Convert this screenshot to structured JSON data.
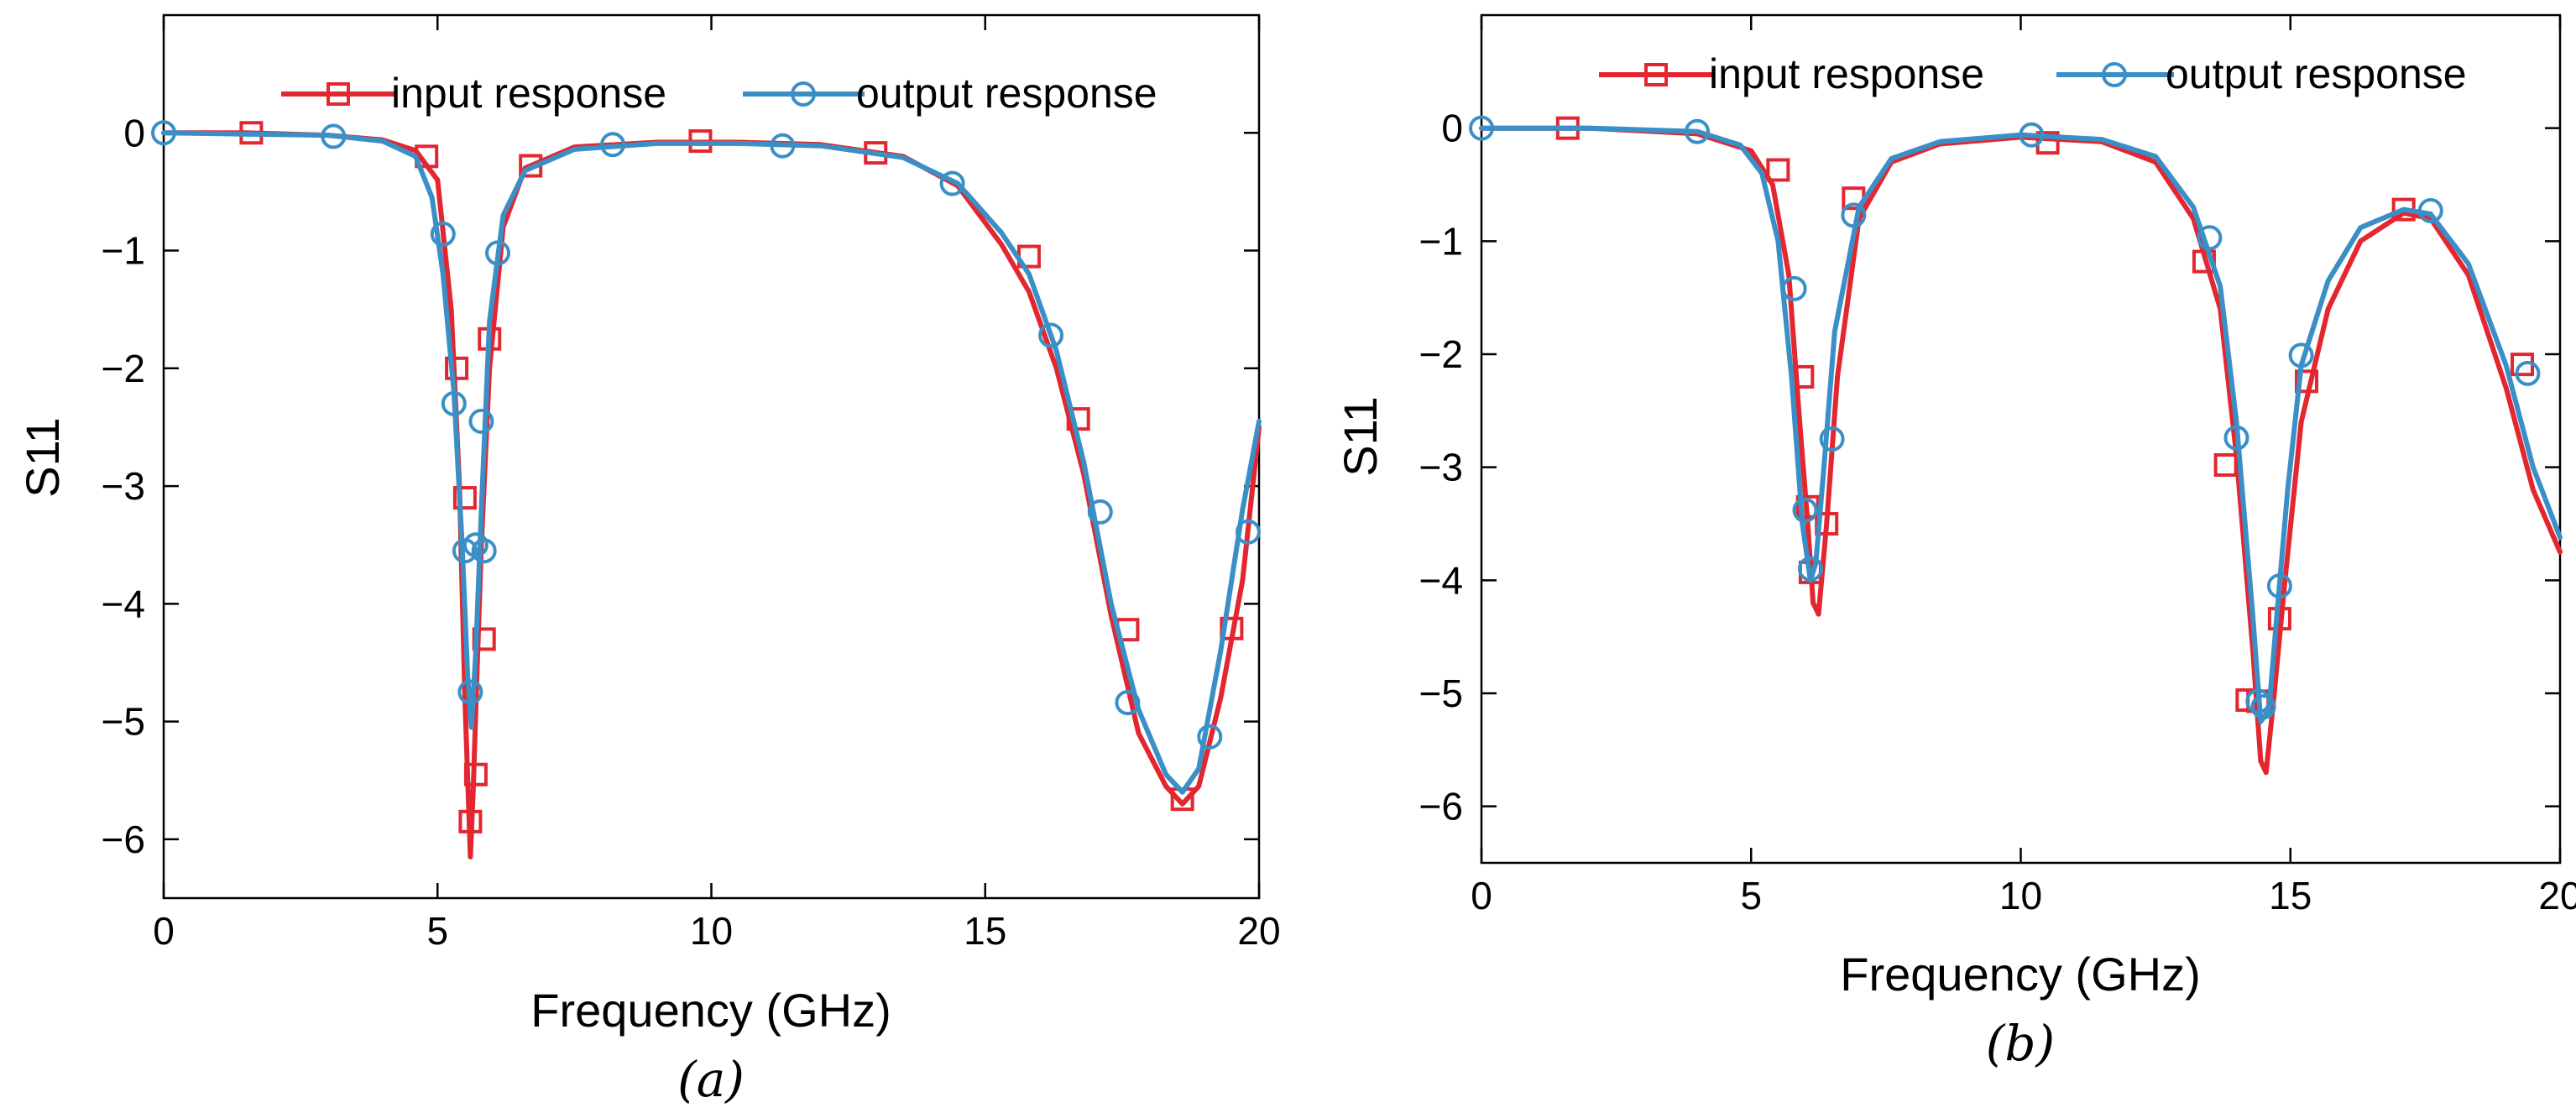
{
  "colors": {
    "input": "#e3262f",
    "output": "#3a8fc7"
  },
  "chart_data": [
    {
      "type": "line",
      "panel": "a",
      "caption": "(a)",
      "xlabel": "Frequency (GHz)",
      "ylabel": "S11",
      "xlim": [
        0,
        20
      ],
      "ylim": [
        -6.5,
        1.0
      ],
      "xticks": [
        0,
        5,
        10,
        15,
        20
      ],
      "xtick_labels": [
        "0",
        "5",
        "10",
        "15",
        "20"
      ],
      "yticks": [
        0,
        -1,
        -2,
        -3,
        -4,
        -5,
        -6
      ],
      "ytick_labels": [
        "0",
        "−1",
        "−2",
        "−3",
        "−4",
        "−5",
        "−6"
      ],
      "legend": [
        "input response",
        "output response"
      ],
      "legend_position": "top-right",
      "series": [
        {
          "name": "input response",
          "color_key": "input",
          "marker": "square",
          "x": [
            0,
            1.5,
            3,
            4,
            4.6,
            5.0,
            5.25,
            5.4,
            5.5,
            5.6,
            5.65,
            5.72,
            5.8,
            5.95,
            6.2,
            6.6,
            7.5,
            9,
            10.5,
            12,
            13.5,
            14.5,
            15.3,
            15.8,
            16.3,
            16.8,
            17.3,
            17.8,
            18.3,
            18.6,
            18.9,
            19.3,
            19.7,
            20
          ],
          "y": [
            0,
            0,
            -0.02,
            -0.06,
            -0.15,
            -0.4,
            -1.5,
            -3.0,
            -4.8,
            -6.15,
            -5.6,
            -4.6,
            -3.5,
            -2.0,
            -0.8,
            -0.3,
            -0.12,
            -0.08,
            -0.08,
            -0.1,
            -0.2,
            -0.45,
            -0.95,
            -1.35,
            -2.0,
            -2.9,
            -4.1,
            -5.1,
            -5.55,
            -5.7,
            -5.55,
            -4.8,
            -3.8,
            -2.5
          ],
          "marker_x": [
            1.6,
            4.8,
            5.35,
            5.5,
            5.6,
            5.7,
            5.85,
            5.95,
            6.7,
            9.8,
            13.0,
            15.8,
            16.7,
            17.6,
            18.6,
            19.5
          ],
          "marker_y": [
            0.0,
            -0.2,
            -2.0,
            -3.1,
            -5.85,
            -5.45,
            -4.3,
            -1.75,
            -0.28,
            -0.07,
            -0.17,
            -1.05,
            -2.43,
            -4.22,
            -5.66,
            -4.21
          ]
        },
        {
          "name": "output response",
          "color_key": "output",
          "marker": "circle",
          "x": [
            0,
            1.5,
            3,
            4,
            4.6,
            4.9,
            5.1,
            5.3,
            5.45,
            5.55,
            5.62,
            5.7,
            5.8,
            5.95,
            6.2,
            6.6,
            7.5,
            9,
            10.5,
            12,
            13.5,
            14.5,
            15.3,
            15.8,
            16.3,
            16.8,
            17.3,
            17.8,
            18.3,
            18.6,
            18.9,
            19.3,
            19.7,
            20
          ],
          "y": [
            0,
            -0.01,
            -0.02,
            -0.07,
            -0.2,
            -0.55,
            -1.2,
            -2.2,
            -3.5,
            -4.6,
            -5.05,
            -4.4,
            -3.2,
            -1.6,
            -0.7,
            -0.32,
            -0.14,
            -0.09,
            -0.09,
            -0.11,
            -0.21,
            -0.43,
            -0.85,
            -1.2,
            -1.85,
            -2.8,
            -4.0,
            -4.9,
            -5.45,
            -5.6,
            -5.4,
            -4.4,
            -3.2,
            -2.45
          ],
          "marker_x": [
            0,
            3.1,
            5.1,
            5.3,
            5.5,
            5.6,
            5.7,
            5.8,
            5.85,
            6.1,
            8.2,
            11.3,
            14.4,
            16.2,
            17.1,
            17.6,
            19.1,
            19.8
          ],
          "marker_y": [
            0.0,
            -0.03,
            -0.86,
            -2.3,
            -3.55,
            -4.75,
            -3.5,
            -2.45,
            -3.55,
            -1.02,
            -0.1,
            -0.11,
            -0.43,
            -1.72,
            -3.22,
            -4.84,
            -5.13,
            -3.39
          ]
        }
      ]
    },
    {
      "type": "line",
      "panel": "b",
      "caption": "(b)",
      "xlabel": "Frequency (GHz)",
      "ylabel": "S11",
      "xlim": [
        0,
        20
      ],
      "ylim": [
        -6.5,
        1.0
      ],
      "xticks": [
        0,
        5,
        10,
        15,
        20
      ],
      "xtick_labels": [
        "0",
        "5",
        "10",
        "15",
        "20"
      ],
      "yticks": [
        0,
        -1,
        -2,
        -3,
        -4,
        -5,
        -6
      ],
      "ytick_labels": [
        "0",
        "−1",
        "−2",
        "−3",
        "−4",
        "−5",
        "−6"
      ],
      "legend": [
        "input response",
        "output response"
      ],
      "legend_position": "top-right",
      "series": [
        {
          "name": "input response",
          "color_key": "input",
          "marker": "square",
          "x": [
            0,
            2,
            4,
            5,
            5.4,
            5.7,
            5.9,
            6.05,
            6.15,
            6.25,
            6.4,
            6.6,
            7.0,
            7.6,
            8.5,
            10,
            11.5,
            12.5,
            13.2,
            13.7,
            14.0,
            14.3,
            14.45,
            14.55,
            14.7,
            14.9,
            15.2,
            15.7,
            16.3,
            17.1,
            17.6,
            18.3,
            19.0,
            19.5,
            20
          ],
          "y": [
            0,
            0,
            -0.05,
            -0.2,
            -0.5,
            -1.3,
            -2.6,
            -3.5,
            -4.2,
            -4.3,
            -3.5,
            -2.2,
            -0.8,
            -0.3,
            -0.14,
            -0.08,
            -0.12,
            -0.3,
            -0.8,
            -1.6,
            -2.9,
            -4.6,
            -5.6,
            -5.7,
            -5.0,
            -4.0,
            -2.6,
            -1.6,
            -1.0,
            -0.75,
            -0.8,
            -1.3,
            -2.3,
            -3.2,
            -3.75
          ],
          "marker_x": [
            1.6,
            5.5,
            5.95,
            6.05,
            6.1,
            6.4,
            6.9,
            10.5,
            13.4,
            13.8,
            14.2,
            14.4,
            14.8,
            15.3,
            17.1,
            19.3
          ],
          "marker_y": [
            0.0,
            -0.37,
            -2.2,
            -3.35,
            -3.93,
            -3.5,
            -0.62,
            -0.13,
            -1.18,
            -2.98,
            -5.06,
            -5.07,
            -4.34,
            -2.24,
            -0.72,
            -2.09
          ]
        },
        {
          "name": "output response",
          "color_key": "output",
          "marker": "circle",
          "x": [
            0,
            2,
            4,
            4.8,
            5.2,
            5.5,
            5.75,
            5.95,
            6.1,
            6.2,
            6.35,
            6.55,
            7.0,
            7.6,
            8.5,
            10,
            11.5,
            12.5,
            13.2,
            13.7,
            14.0,
            14.3,
            14.45,
            14.6,
            14.75,
            14.95,
            15.2,
            15.7,
            16.3,
            17.1,
            17.6,
            18.3,
            19.0,
            19.5,
            20
          ],
          "y": [
            0,
            0,
            -0.03,
            -0.15,
            -0.4,
            -1.0,
            -2.2,
            -3.5,
            -4.0,
            -3.85,
            -3.0,
            -1.8,
            -0.7,
            -0.27,
            -0.12,
            -0.06,
            -0.1,
            -0.25,
            -0.7,
            -1.4,
            -2.6,
            -4.3,
            -5.25,
            -5.15,
            -4.3,
            -3.2,
            -2.1,
            -1.35,
            -0.88,
            -0.72,
            -0.76,
            -1.2,
            -2.1,
            -3.0,
            -3.62
          ],
          "marker_x": [
            0,
            4.0,
            5.8,
            6.0,
            6.1,
            6.5,
            6.9,
            10.2,
            13.5,
            14.0,
            14.4,
            14.5,
            14.8,
            15.2,
            17.6,
            19.4
          ],
          "marker_y": [
            0.0,
            -0.03,
            -1.42,
            -3.38,
            -3.9,
            -2.75,
            -0.77,
            -0.06,
            -0.97,
            -2.74,
            -5.07,
            -5.12,
            -4.05,
            -2.01,
            -0.73,
            -2.17
          ]
        }
      ]
    }
  ]
}
